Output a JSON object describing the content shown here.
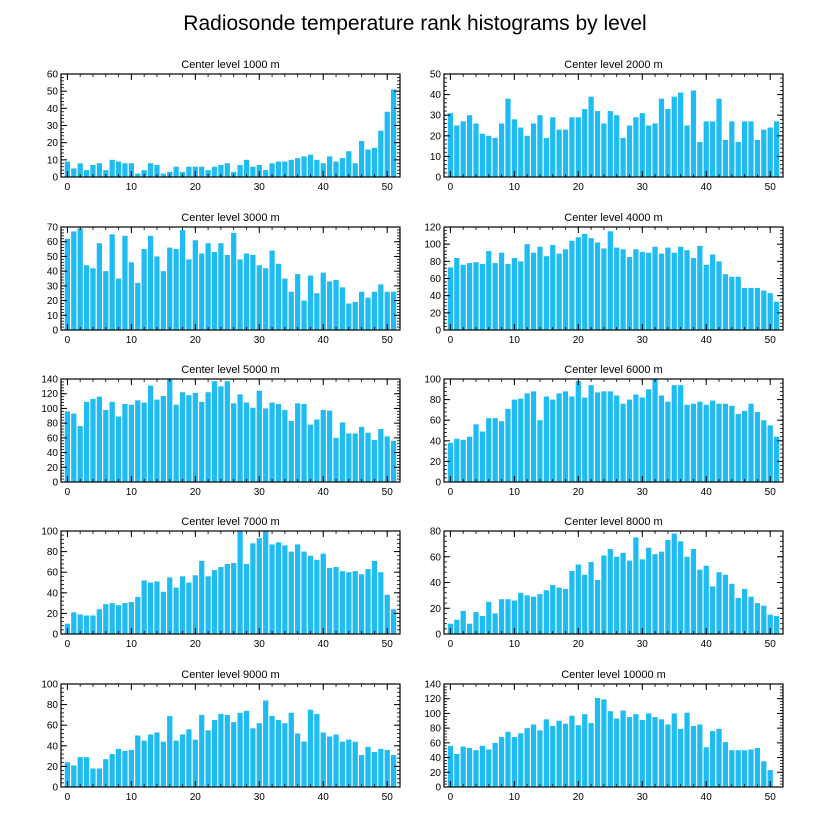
{
  "figure": {
    "title": "Radiosonde temperature rank histograms by level",
    "bar_color": "#1ebcf2",
    "axis_color": "#000000"
  },
  "chart_data": [
    {
      "type": "bar",
      "title": "Center level 1000 m",
      "xlim": [
        -1,
        52
      ],
      "ylim": [
        0,
        60
      ],
      "xticks": [
        0,
        10,
        20,
        30,
        40,
        50
      ],
      "yticks": [
        0,
        10,
        20,
        30,
        40,
        50,
        60
      ],
      "values": [
        9,
        5,
        8,
        4,
        7,
        8,
        4,
        10,
        9,
        8,
        8,
        2,
        4,
        8,
        7,
        2,
        3,
        6,
        3,
        6,
        6,
        6,
        4,
        6,
        7,
        8,
        3,
        7,
        10,
        6,
        7,
        4,
        8,
        9,
        9,
        10,
        11,
        12,
        13,
        10,
        8,
        12,
        9,
        11,
        15,
        8,
        21,
        16,
        17,
        27,
        38,
        51
      ]
    },
    {
      "type": "bar",
      "title": "Center level 2000 m",
      "xlim": [
        -1,
        52
      ],
      "ylim": [
        0,
        50
      ],
      "xticks": [
        0,
        10,
        20,
        30,
        40,
        50
      ],
      "yticks": [
        0,
        10,
        20,
        30,
        40,
        50
      ],
      "values": [
        31,
        25,
        27,
        30,
        26,
        21,
        20,
        19,
        26,
        38,
        28,
        24,
        20,
        26,
        30,
        19,
        29,
        23,
        23,
        29,
        29,
        33,
        39,
        32,
        26,
        32,
        30,
        19,
        25,
        29,
        31,
        25,
        26,
        38,
        33,
        39,
        41,
        25,
        42,
        17,
        27,
        27,
        38,
        18,
        27,
        17,
        27,
        27,
        18,
        23,
        24,
        27
      ]
    },
    {
      "type": "bar",
      "title": "Center level 3000 m",
      "xlim": [
        -1,
        52
      ],
      "ylim": [
        0,
        70
      ],
      "xticks": [
        0,
        10,
        20,
        30,
        40,
        50
      ],
      "yticks": [
        0,
        10,
        20,
        30,
        40,
        50,
        60,
        70
      ],
      "values": [
        62,
        67,
        69,
        44,
        42,
        59,
        40,
        65,
        35,
        64,
        46,
        32,
        55,
        64,
        50,
        40,
        56,
        55,
        68,
        48,
        61,
        52,
        59,
        53,
        59,
        51,
        66,
        48,
        52,
        51,
        44,
        42,
        54,
        45,
        35,
        26,
        38,
        20,
        37,
        25,
        39,
        33,
        34,
        29,
        18,
        19,
        26,
        22,
        26,
        31,
        26,
        26
      ]
    },
    {
      "type": "bar",
      "title": "Center level 4000 m",
      "xlim": [
        -1,
        52
      ],
      "ylim": [
        0,
        120
      ],
      "xticks": [
        0,
        10,
        20,
        30,
        40,
        50
      ],
      "yticks": [
        0,
        20,
        40,
        60,
        80,
        100,
        120
      ],
      "values": [
        73,
        84,
        76,
        78,
        79,
        77,
        92,
        78,
        90,
        77,
        84,
        80,
        100,
        90,
        97,
        86,
        99,
        89,
        94,
        104,
        108,
        112,
        107,
        102,
        95,
        115,
        96,
        94,
        85,
        94,
        91,
        90,
        97,
        89,
        96,
        90,
        97,
        93,
        84,
        98,
        76,
        88,
        80,
        65,
        62,
        62,
        49,
        49,
        49,
        46,
        43,
        33
      ]
    },
    {
      "type": "bar",
      "title": "Center level 5000 m",
      "xlim": [
        -1,
        52
      ],
      "ylim": [
        0,
        140
      ],
      "xticks": [
        0,
        10,
        20,
        30,
        40,
        50
      ],
      "yticks": [
        0,
        20,
        40,
        60,
        80,
        100,
        120,
        140
      ],
      "values": [
        96,
        93,
        76,
        109,
        113,
        116,
        98,
        109,
        89,
        106,
        105,
        111,
        108,
        131,
        112,
        117,
        140,
        105,
        122,
        118,
        121,
        109,
        122,
        137,
        130,
        137,
        107,
        119,
        108,
        101,
        124,
        100,
        108,
        106,
        98,
        83,
        107,
        106,
        78,
        85,
        98,
        97,
        60,
        81,
        66,
        66,
        75,
        67,
        57,
        72,
        62,
        56
      ]
    },
    {
      "type": "bar",
      "title": "Center level 6000 m",
      "xlim": [
        -1,
        52
      ],
      "ylim": [
        0,
        100
      ],
      "xticks": [
        0,
        10,
        20,
        30,
        40,
        50
      ],
      "yticks": [
        0,
        20,
        40,
        60,
        80,
        100
      ],
      "values": [
        38,
        42,
        41,
        44,
        56,
        49,
        62,
        62,
        59,
        71,
        80,
        81,
        86,
        88,
        60,
        83,
        80,
        86,
        88,
        83,
        98,
        82,
        94,
        87,
        88,
        88,
        84,
        76,
        80,
        85,
        82,
        90,
        100,
        84,
        78,
        94,
        94,
        75,
        76,
        78,
        75,
        79,
        76,
        76,
        74,
        66,
        69,
        76,
        68,
        60,
        55,
        44
      ]
    },
    {
      "type": "bar",
      "title": "Center level 7000 m",
      "xlim": [
        -1,
        52
      ],
      "ylim": [
        0,
        100
      ],
      "xticks": [
        0,
        10,
        20,
        30,
        40,
        50
      ],
      "yticks": [
        0,
        20,
        40,
        60,
        80,
        100
      ],
      "values": [
        10,
        21,
        19,
        18,
        18,
        24,
        29,
        30,
        28,
        30,
        31,
        36,
        52,
        50,
        51,
        41,
        55,
        45,
        56,
        50,
        57,
        71,
        56,
        62,
        65,
        68,
        69,
        100,
        68,
        88,
        93,
        100,
        87,
        89,
        86,
        80,
        87,
        80,
        76,
        72,
        78,
        64,
        65,
        61,
        60,
        61,
        58,
        63,
        71,
        60,
        38,
        24
      ]
    },
    {
      "type": "bar",
      "title": "Center level 8000 m",
      "xlim": [
        -1,
        52
      ],
      "ylim": [
        0,
        80
      ],
      "xticks": [
        0,
        10,
        20,
        30,
        40,
        50
      ],
      "yticks": [
        0,
        20,
        40,
        60,
        80
      ],
      "values": [
        8,
        11,
        18,
        8,
        17,
        14,
        25,
        16,
        27,
        27,
        26,
        32,
        30,
        29,
        31,
        34,
        38,
        36,
        35,
        49,
        54,
        46,
        56,
        42,
        61,
        66,
        60,
        63,
        57,
        75,
        58,
        67,
        62,
        64,
        73,
        78,
        72,
        60,
        66,
        50,
        53,
        37,
        48,
        46,
        39,
        28,
        35,
        29,
        24,
        22,
        15,
        14
      ]
    },
    {
      "type": "bar",
      "title": "Center level 9000 m",
      "xlim": [
        -1,
        52
      ],
      "ylim": [
        0,
        100
      ],
      "xticks": [
        0,
        10,
        20,
        30,
        40,
        50
      ],
      "yticks": [
        0,
        20,
        40,
        60,
        80,
        100
      ],
      "values": [
        24,
        21,
        29,
        29,
        18,
        18,
        27,
        32,
        37,
        35,
        36,
        50,
        45,
        51,
        53,
        44,
        69,
        45,
        51,
        56,
        46,
        70,
        55,
        65,
        71,
        70,
        63,
        72,
        74,
        57,
        62,
        84,
        69,
        65,
        62,
        72,
        52,
        44,
        75,
        71,
        53,
        49,
        51,
        44,
        46,
        44,
        31,
        39,
        34,
        37,
        36,
        31
      ]
    },
    {
      "type": "bar",
      "title": "Center level 10000 m",
      "xlim": [
        -1,
        52
      ],
      "ylim": [
        0,
        140
      ],
      "xticks": [
        0,
        10,
        20,
        30,
        40,
        50
      ],
      "yticks": [
        0,
        20,
        40,
        60,
        80,
        100,
        120,
        140
      ],
      "values": [
        56,
        45,
        55,
        53,
        50,
        56,
        51,
        60,
        68,
        75,
        68,
        73,
        80,
        85,
        77,
        92,
        83,
        90,
        86,
        97,
        84,
        99,
        87,
        121,
        119,
        103,
        93,
        104,
        95,
        99,
        91,
        100,
        95,
        92,
        85,
        100,
        79,
        101,
        83,
        85,
        54,
        76,
        79,
        61,
        50,
        50,
        50,
        51,
        53,
        35,
        23,
        0
      ]
    }
  ]
}
